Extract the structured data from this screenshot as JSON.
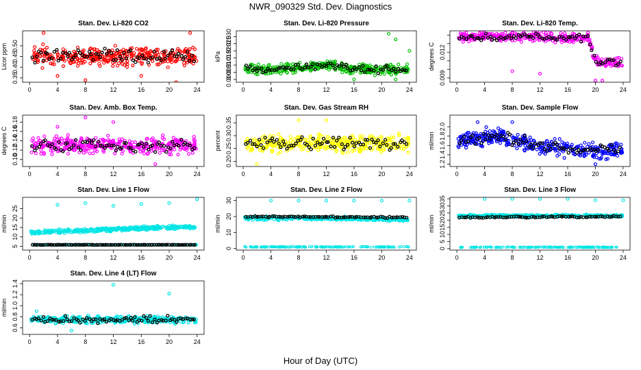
{
  "figure": {
    "title": "NWR_090329  Std. Dev. Diagnostics",
    "xlabel": "Hour of Day (UTC)"
  },
  "chart_data": [
    {
      "type": "scatter",
      "title": "Stan. Dev. Li-820 CO2",
      "ylabel": "Licor ppm",
      "xlim": [
        -1,
        25
      ],
      "ylim": [
        0.33,
        0.57
      ],
      "xticks": [
        0,
        4,
        8,
        12,
        16,
        20,
        24
      ],
      "yticks": [
        0.35,
        0.4,
        0.45,
        0.5
      ],
      "ytick_labels": [
        "0.35",
        "0.40",
        "0.45",
        "0.50"
      ],
      "color": "#ff0000",
      "trend": [
        [
          0,
          0.45
        ],
        [
          24,
          0.45
        ]
      ],
      "spread": 0.06,
      "black_spread": 0.04,
      "outliers": [
        [
          2,
          0.56
        ],
        [
          8,
          0.34
        ],
        [
          21,
          0.33
        ],
        [
          23,
          0.56
        ],
        [
          4,
          0.36
        ],
        [
          16,
          0.36
        ]
      ],
      "seed": 11
    },
    {
      "type": "scatter",
      "title": "Stan. Dev. Li-820 Pressure",
      "ylabel": "kPa",
      "xlim": [
        -1,
        25
      ],
      "ylim": [
        -0.002,
        0.034
      ],
      "xticks": [
        0,
        4,
        8,
        12,
        16,
        20,
        24
      ],
      "yticks": [
        0.0,
        0.005,
        0.01,
        0.015,
        0.02,
        0.025,
        0.03
      ],
      "ytick_labels": [
        "0.000",
        "0.005",
        "0.010",
        "0.015",
        "0.020",
        "0.025",
        "0.030"
      ],
      "color": "#00c000",
      "trend": [
        [
          0,
          0.007
        ],
        [
          8,
          0.008
        ],
        [
          12,
          0.01
        ],
        [
          16,
          0.007
        ],
        [
          24,
          0.007
        ]
      ],
      "spread": 0.005,
      "black_spread": 0.003,
      "outliers": [
        [
          21,
          0.032
        ],
        [
          22,
          0.028
        ],
        [
          24,
          0.02
        ],
        [
          16,
          0.0
        ],
        [
          22,
          0.0
        ]
      ],
      "seed": 23
    },
    {
      "type": "scatter",
      "title": "Stan. Dev. Li-820 Temp.",
      "ylabel": "degrees C",
      "xlim": [
        -1,
        25
      ],
      "ylim": [
        0.0085,
        0.0145
      ],
      "xticks": [
        0,
        4,
        8,
        12,
        16,
        20,
        24
      ],
      "yticks": [
        0.009,
        0.01,
        0.011,
        0.012,
        0.013,
        0.014
      ],
      "ytick_labels": [
        "0.009",
        "",
        "",
        "0.012",
        "",
        ""
      ],
      "color": "#ff00ff",
      "trend": [
        [
          0,
          0.0138
        ],
        [
          12,
          0.0138
        ],
        [
          19,
          0.0136
        ],
        [
          20,
          0.011
        ],
        [
          24,
          0.0108
        ]
      ],
      "spread": 0.0008,
      "black_spread": 0.0005,
      "outliers": [
        [
          8,
          0.0098
        ],
        [
          12,
          0.0095
        ],
        [
          20,
          0.0087
        ],
        [
          21,
          0.0087
        ]
      ],
      "seed": 37
    },
    {
      "type": "scatter",
      "title": "Stan. Dev. Amb. Box Temp.",
      "ylabel": "degrees C",
      "xlim": [
        -1,
        25
      ],
      "ylim": [
        0.085,
        0.195
      ],
      "xticks": [
        0,
        4,
        8,
        12,
        16,
        20,
        24
      ],
      "yticks": [
        0.1,
        0.12,
        0.14,
        0.16,
        0.18
      ],
      "ytick_labels": [
        "0.10",
        "0.12",
        "0.14",
        "0.16",
        "0.18"
      ],
      "color": "#ff00ff",
      "trend": [
        [
          0,
          0.13
        ],
        [
          24,
          0.13
        ]
      ],
      "spread": 0.025,
      "black_spread": 0.015,
      "outliers": [
        [
          8,
          0.19
        ],
        [
          4,
          0.17
        ],
        [
          12,
          0.18
        ],
        [
          18,
          0.09
        ]
      ],
      "seed": 41
    },
    {
      "type": "scatter",
      "title": "Stan. Dev. Gas Stream RH",
      "ylabel": "percent",
      "xlim": [
        -1,
        25
      ],
      "ylim": [
        0.18,
        0.38
      ],
      "xticks": [
        0,
        4,
        8,
        12,
        16,
        20,
        24
      ],
      "yticks": [
        0.2,
        0.25,
        0.3,
        0.35
      ],
      "ytick_labels": [
        "0.20",
        "0.25",
        "0.30",
        "0.35"
      ],
      "color": "#ffff00",
      "trend": [
        [
          0,
          0.27
        ],
        [
          24,
          0.27
        ]
      ],
      "spread": 0.05,
      "black_spread": 0.03,
      "outliers": [
        [
          8,
          0.36
        ],
        [
          12,
          0.36
        ],
        [
          2,
          0.19
        ]
      ],
      "seed": 53
    },
    {
      "type": "scatter",
      "title": "Stan. Dev. Sample Flow",
      "ylabel": "ml/min",
      "xlim": [
        -1,
        25
      ],
      "ylim": [
        1.15,
        2.25
      ],
      "xticks": [
        0,
        4,
        8,
        12,
        16,
        20,
        24
      ],
      "yticks": [
        1.2,
        1.4,
        1.6,
        1.8,
        2.0
      ],
      "ytick_labels": [
        "1.2",
        "1.4",
        "1.6",
        "1.8",
        "2.0"
      ],
      "color": "#0000ff",
      "trend": [
        [
          0,
          1.7
        ],
        [
          6,
          1.8
        ],
        [
          12,
          1.6
        ],
        [
          18,
          1.5
        ],
        [
          24,
          1.5
        ]
      ],
      "spread": 0.25,
      "black_spread": 0.15,
      "outliers": [
        [
          3,
          2.1
        ],
        [
          8,
          2.1
        ],
        [
          20,
          1.2
        ]
      ],
      "seed": 67
    },
    {
      "type": "scatter",
      "title": "Stan. Dev. Line 1 Flow",
      "ylabel": "ml/min",
      "xlim": [
        -1,
        25
      ],
      "ylim": [
        3,
        31
      ],
      "xticks": [
        0,
        4,
        8,
        12,
        16,
        20,
        24
      ],
      "yticks": [
        5,
        10,
        15,
        20,
        25
      ],
      "ytick_labels": [
        "5",
        "10",
        "15",
        "20",
        "25"
      ],
      "color": "#00e5e5",
      "trend": [
        [
          0,
          12.5
        ],
        [
          24,
          15.5
        ]
      ],
      "spread": 1.4,
      "black_trend": [
        [
          0,
          5.8
        ],
        [
          24,
          5.8
        ]
      ],
      "black_spread": 0.1,
      "low_band": 5.8,
      "outliers": [
        [
          4,
          27
        ],
        [
          8,
          28
        ],
        [
          12,
          26.5
        ],
        [
          16,
          27.5
        ],
        [
          20,
          28
        ],
        [
          24,
          30
        ]
      ],
      "seed": 71
    },
    {
      "type": "scatter",
      "title": "Stan. Dev. Line 2 Flow",
      "ylabel": "ml/min",
      "xlim": [
        -1,
        25
      ],
      "ylim": [
        -1,
        32
      ],
      "xticks": [
        0,
        4,
        8,
        12,
        16,
        20,
        24
      ],
      "yticks": [
        0,
        10,
        20,
        30
      ],
      "ytick_labels": [
        "0",
        "10",
        "20",
        "30"
      ],
      "color": "#00e5e5",
      "trend": [
        [
          0,
          19
        ],
        [
          12,
          19
        ],
        [
          24,
          18
        ]
      ],
      "spread": 1.5,
      "black_trend": [
        [
          0,
          20
        ],
        [
          24,
          19.5
        ]
      ],
      "black_spread": 0.6,
      "low_band": 1,
      "outliers": [
        [
          4,
          30
        ],
        [
          8,
          30
        ],
        [
          12,
          30
        ],
        [
          16,
          30
        ],
        [
          20,
          30
        ],
        [
          24,
          30
        ]
      ],
      "seed": 83
    },
    {
      "type": "scatter",
      "title": "Stan. Dev. Line 3 Flow",
      "ylabel": "ml/min",
      "xlim": [
        -1,
        25
      ],
      "ylim": [
        -1,
        36
      ],
      "xticks": [
        0,
        4,
        8,
        12,
        16,
        20,
        24
      ],
      "yticks": [
        0,
        5,
        10,
        15,
        20,
        25,
        30,
        35
      ],
      "ytick_labels": [
        "0",
        "5",
        "10",
        "15",
        "20",
        "25",
        "30",
        "35"
      ],
      "color": "#00e5e5",
      "trend": [
        [
          0,
          23
        ],
        [
          24,
          23
        ]
      ],
      "spread": 1.2,
      "black_trend": [
        [
          0,
          22
        ],
        [
          24,
          22.5
        ]
      ],
      "black_spread": 0.6,
      "low_band": 1,
      "outliers": [
        [
          4,
          35
        ],
        [
          8,
          35
        ],
        [
          12,
          35
        ],
        [
          16,
          35
        ],
        [
          20,
          34
        ],
        [
          24,
          34
        ]
      ],
      "seed": 97
    },
    {
      "type": "scatter",
      "title": "Stan. Dev. Line 4 (LT) Flow",
      "ylabel": "ml/min",
      "xlim": [
        -1,
        25
      ],
      "ylim": [
        0.48,
        1.45
      ],
      "xticks": [
        0,
        4,
        8,
        12,
        16,
        20,
        24
      ],
      "yticks": [
        0.6,
        0.8,
        1.0,
        1.2,
        1.4
      ],
      "ytick_labels": [
        "0.6",
        "0.8",
        "1.0",
        "1.2",
        "1.4"
      ],
      "color": "#00e5e5",
      "trend": [
        [
          0,
          0.75
        ],
        [
          24,
          0.75
        ]
      ],
      "spread": 0.09,
      "black_spread": 0.07,
      "outliers": [
        [
          12,
          1.38
        ],
        [
          20,
          1.22
        ],
        [
          1,
          0.9
        ],
        [
          6,
          0.55
        ]
      ],
      "seed": 101
    }
  ]
}
